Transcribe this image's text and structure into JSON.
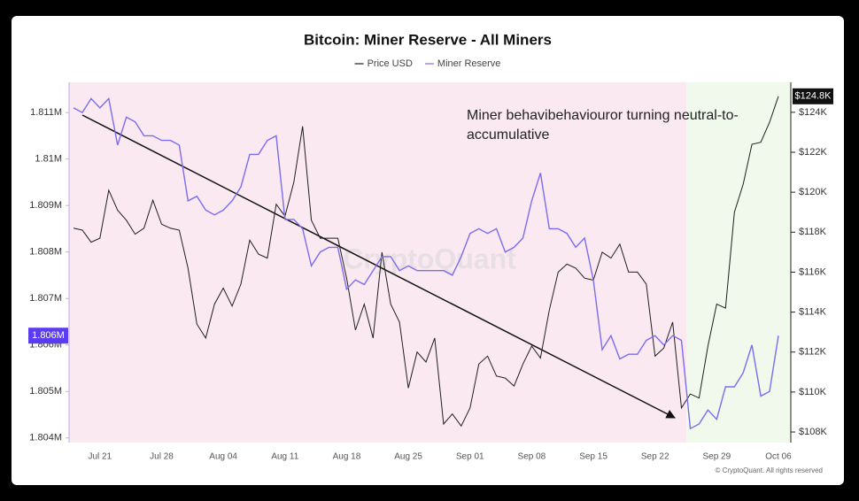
{
  "chart_data": {
    "type": "line",
    "title": "Bitcoin: Miner Reserve - All Miners",
    "annotation": "Miner behavibehaviouror turning neutral-to-accumulative",
    "watermark": "CryptoQuant",
    "credit": "© CryptoQuant. All rights reserved",
    "categories": [
      null,
      null,
      null,
      "Jul 21",
      null,
      null,
      null,
      null,
      null,
      null,
      "Jul 28",
      null,
      null,
      null,
      null,
      null,
      null,
      "Aug 04",
      null,
      null,
      null,
      null,
      null,
      null,
      "Aug 11",
      null,
      null,
      null,
      null,
      null,
      null,
      "Aug 18",
      null,
      null,
      null,
      null,
      null,
      null,
      "Aug 25",
      null,
      null,
      null,
      null,
      null,
      null,
      "Sep 01",
      null,
      null,
      null,
      null,
      null,
      null,
      "Sep 08",
      null,
      null,
      null,
      null,
      null,
      null,
      "Sep 15",
      null,
      null,
      null,
      null,
      null,
      null,
      "Sep 22",
      null,
      null,
      null,
      null,
      null,
      null,
      "Sep 29",
      null,
      null,
      null,
      null,
      null,
      null,
      "Oct 06"
    ],
    "series": [
      {
        "name": "Price USD",
        "color": "#1f1f1f",
        "axis": "y2",
        "values": [
          118.2,
          118.1,
          117.5,
          117.7,
          120.1,
          119.1,
          118.6,
          117.9,
          118.2,
          119.6,
          118.4,
          118.2,
          118.1,
          116.2,
          113.4,
          112.7,
          114.4,
          115.2,
          114.3,
          115.4,
          117.6,
          116.9,
          116.7,
          119.4,
          118.8,
          120.5,
          123.3,
          118.6,
          117.7,
          117.7,
          117.7,
          115.7,
          113.1,
          114.4,
          112.7,
          117.0,
          114.4,
          113.5,
          110.2,
          112.0,
          111.5,
          112.7,
          108.4,
          108.9,
          108.3,
          109.2,
          111.4,
          111.8,
          110.8,
          110.7,
          110.3,
          111.4,
          112.3,
          111.7,
          114.1,
          116.0,
          116.4,
          116.2,
          115.7,
          115.6,
          117.0,
          116.7,
          117.4,
          116.0,
          116.0,
          115.4,
          111.8,
          112.2,
          113.5,
          109.2,
          109.9,
          109.7,
          112.3,
          114.4,
          114.2,
          119.0,
          120.4,
          122.4,
          122.5,
          123.5,
          124.8
        ],
        "value_labels": [
          null,
          null,
          null,
          null,
          null,
          null,
          null,
          null,
          null,
          null,
          null,
          null,
          null,
          null,
          null,
          null,
          null,
          null,
          null,
          null,
          null,
          null,
          null,
          null,
          null,
          null,
          null,
          null,
          null,
          null,
          null,
          null,
          null,
          null,
          null,
          null,
          null,
          null,
          null,
          null,
          null,
          null,
          null,
          null,
          null,
          null,
          null,
          null,
          null,
          null,
          null,
          null,
          null,
          null,
          null,
          null,
          null,
          null,
          null,
          null,
          null,
          null,
          null,
          null,
          null,
          null,
          null,
          null,
          null,
          null,
          null,
          null,
          null,
          null,
          null,
          null,
          null,
          null,
          null,
          null,
          "$124.8K"
        ]
      },
      {
        "name": "Miner Reserve",
        "color": "#7b6cf0",
        "values": [
          1.8111,
          1.811,
          1.8113,
          1.8111,
          1.8113,
          1.8103,
          1.8109,
          1.8108,
          1.8105,
          1.8105,
          1.8104,
          1.8104,
          1.8103,
          1.8091,
          1.8092,
          1.8089,
          1.8088,
          1.8089,
          1.8091,
          1.8094,
          1.8101,
          1.8101,
          1.8104,
          1.8105,
          1.8087,
          1.8087,
          1.8085,
          1.8077,
          1.808,
          1.8081,
          1.8081,
          1.8072,
          1.8074,
          1.8073,
          1.8076,
          1.8079,
          1.8079,
          1.8076,
          1.8077,
          1.8076,
          1.8076,
          1.8076,
          1.8076,
          1.8075,
          1.8079,
          1.8084,
          1.8085,
          1.8084,
          1.8085,
          1.808,
          1.8081,
          1.8083,
          1.8091,
          1.8097,
          1.8085,
          1.8085,
          1.8084,
          1.8081,
          1.8083,
          1.8074,
          1.8059,
          1.8062,
          1.8057,
          1.8058,
          1.8058,
          1.8061,
          1.8062,
          1.806,
          1.8062,
          1.8061,
          1.8042,
          1.8043,
          1.8046,
          1.8044,
          1.8051,
          1.8051,
          1.8054,
          1.806,
          1.8049,
          1.805,
          1.8062
        ],
        "value_labels": [
          null,
          null,
          null,
          null,
          null,
          null,
          null,
          null,
          null,
          null,
          null,
          null,
          null,
          null,
          null,
          null,
          null,
          null,
          null,
          null,
          null,
          null,
          null,
          null,
          null,
          null,
          null,
          null,
          null,
          null,
          null,
          null,
          null,
          null,
          null,
          null,
          null,
          null,
          null,
          null,
          null,
          null,
          null,
          null,
          null,
          null,
          null,
          null,
          null,
          null,
          null,
          null,
          null,
          null,
          null,
          null,
          null,
          null,
          null,
          null,
          null,
          null,
          null,
          null,
          null,
          null,
          null,
          null,
          null,
          null,
          null,
          null,
          null,
          null,
          null,
          null,
          null,
          null,
          null,
          null,
          "1.806M"
        ]
      }
    ],
    "ylim": [
      1.8039,
      1.81165
    ],
    "yticks": [
      {
        "value": 1.804,
        "label": "1.804M"
      },
      {
        "value": 1.805,
        "label": "1.805M"
      },
      {
        "value": 1.806,
        "label": "1.806M"
      },
      {
        "value": 1.807,
        "label": "1.807M"
      },
      {
        "value": 1.808,
        "label": "1.808M"
      },
      {
        "value": 1.809,
        "label": "1.809M"
      },
      {
        "value": 1.81,
        "label": "1.81M"
      },
      {
        "value": 1.811,
        "label": "1.811M"
      }
    ],
    "y2lim": [
      107.47,
      125.5
    ],
    "y2ticks": [
      {
        "value": 108,
        "label": "$108K"
      },
      {
        "value": 110,
        "label": "$110K"
      },
      {
        "value": 112,
        "label": "$112K"
      },
      {
        "value": 114,
        "label": "$114K"
      },
      {
        "value": 116,
        "label": "$116K"
      },
      {
        "value": 118,
        "label": "$118K"
      },
      {
        "value": 120,
        "label": "$120K"
      },
      {
        "value": 122,
        "label": "$122K"
      },
      {
        "value": 124,
        "label": "$124K"
      }
    ],
    "grid": false,
    "legend": "top"
  }
}
